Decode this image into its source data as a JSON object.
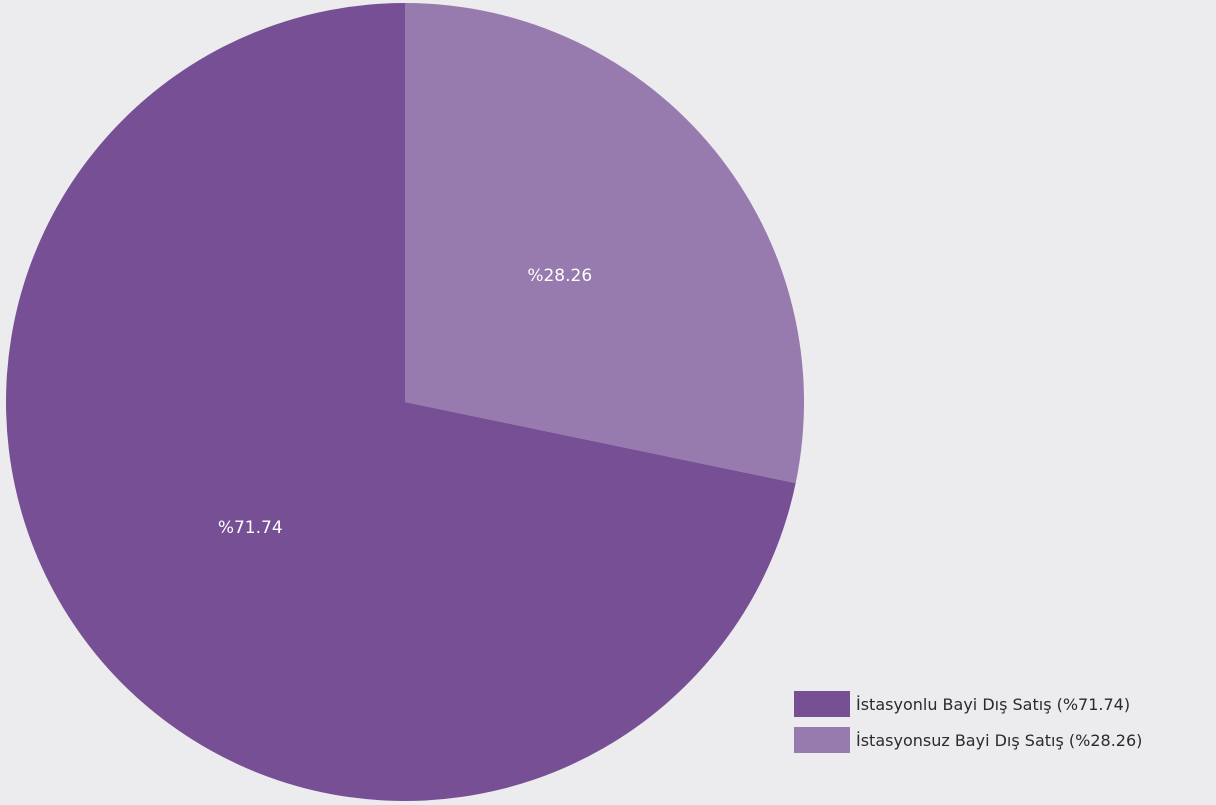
{
  "chart_data": {
    "type": "pie",
    "title": "",
    "legend_position": "bottom-right",
    "slices": [
      {
        "label": "İstasyonlu Bayi Dış Satış (%71.74)",
        "value": 71.74,
        "data_label": "%71.74",
        "color": "#774f94"
      },
      {
        "label": "İstasyonsuz Bayi Dış Satış (%28.26)",
        "value": 28.26,
        "data_label": "%28.26",
        "color": "#977aae"
      }
    ]
  }
}
